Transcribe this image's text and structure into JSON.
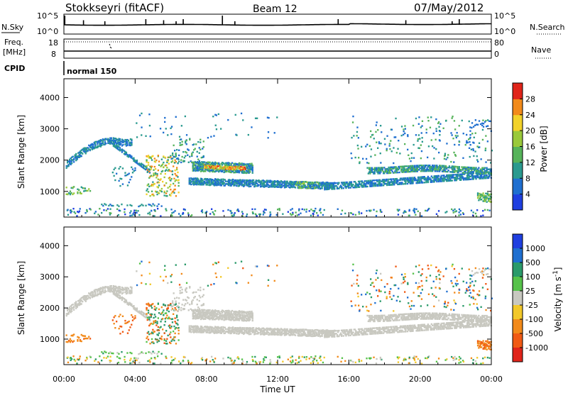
{
  "header": {
    "station": "Stokkseyri (fitACF)",
    "beam": "Beam 12",
    "date": "07/May/2012"
  },
  "aux_panels": {
    "nsky_label": "N.Sky",
    "nsky_tick_top": "10^5",
    "nsky_tick_bottom": "10^0",
    "nsearch_label": "N.Search",
    "freq_label_1": "Freq.",
    "freq_label_2": "[MHz]",
    "freq_tick_top": "18",
    "freq_tick_bottom": "8",
    "nave_label": "Nave",
    "nave_tick_top": "80",
    "nave_tick_bottom": "0",
    "cpid_label": "CPID",
    "cpid_value": "normal 150"
  },
  "chart_data": [
    {
      "type": "heatmap",
      "name": "power",
      "ylabel": "Slant Range [km]",
      "ylim": [
        180,
        4600
      ],
      "yticks": [
        "1000",
        "2000",
        "3000",
        "4000"
      ],
      "xlabel": "Time UT",
      "xlim_hours": [
        0,
        24
      ],
      "xticks": [
        "00:00",
        "04:00",
        "08:00",
        "12:00",
        "16:00",
        "20:00",
        "00:00"
      ],
      "colorbar": {
        "label": "Power [dB]",
        "ticks": [
          "4",
          "8",
          "12",
          "16",
          "20",
          "24",
          "28"
        ],
        "colors": [
          "#1f3fe0",
          "#1f6fd0",
          "#2a9a8f",
          "#56b35a",
          "#9ac93a",
          "#f2d22a",
          "#f28a1a",
          "#e0241a"
        ]
      }
    },
    {
      "type": "heatmap",
      "name": "velocity",
      "ylabel": "Slant Range [km]",
      "ylim": [
        180,
        4600
      ],
      "yticks": [
        "1000",
        "2000",
        "3000",
        "4000"
      ],
      "xlabel": "Time UT",
      "xlim_hours": [
        0,
        24
      ],
      "xticks": [
        "00:00",
        "04:00",
        "08:00",
        "12:00",
        "16:00",
        "20:00",
        "00:00"
      ],
      "colorbar": {
        "label": "Velocity [m s-1]",
        "ticks": [
          "1000",
          "500",
          "100",
          "25",
          "-25",
          "-100",
          "-500",
          "-1000"
        ],
        "colors": [
          "#1f3fe0",
          "#1f6fd0",
          "#2a9a6a",
          "#56c24a",
          "#c8c8c0",
          "#f2c82a",
          "#f28a1a",
          "#f05a14",
          "#e0241a"
        ]
      }
    }
  ]
}
